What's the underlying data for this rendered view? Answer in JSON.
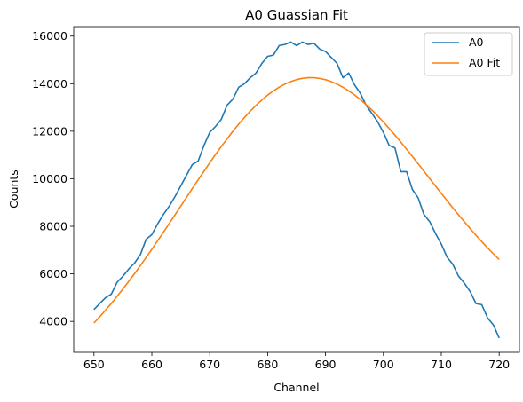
{
  "chart_data": {
    "type": "line",
    "title": "A0 Guassian Fit",
    "xlabel": "Channel",
    "ylabel": "Counts",
    "xlim": [
      646.5,
      723.5
    ],
    "ylim": [
      2700,
      16400
    ],
    "x_ticks": [
      650,
      660,
      670,
      680,
      690,
      700,
      710,
      720
    ],
    "y_ticks": [
      4000,
      6000,
      8000,
      10000,
      12000,
      14000,
      16000
    ],
    "grid": false,
    "legend_position": "top-right",
    "series": [
      {
        "name": "A0",
        "color": "#1f77b4",
        "x": [
          650,
          651,
          652,
          653,
          654,
          655,
          656,
          657,
          658,
          659,
          660,
          661,
          662,
          663,
          664,
          665,
          666,
          667,
          668,
          669,
          670,
          671,
          672,
          673,
          674,
          675,
          676,
          677,
          678,
          679,
          680,
          681,
          682,
          683,
          684,
          685,
          686,
          687,
          688,
          689,
          690,
          691,
          692,
          693,
          694,
          695,
          696,
          697,
          698,
          699,
          700,
          701,
          702,
          703,
          704,
          705,
          706,
          707,
          708,
          709,
          710,
          711,
          712,
          713,
          714,
          715,
          716,
          717,
          718,
          719,
          720
        ],
        "y": [
          4500,
          4750,
          5000,
          5150,
          5650,
          5900,
          6200,
          6450,
          6800,
          7450,
          7650,
          8100,
          8500,
          8850,
          9250,
          9700,
          10150,
          10600,
          10750,
          11400,
          11950,
          12200,
          12500,
          13100,
          13350,
          13850,
          14000,
          14250,
          14450,
          14850,
          15150,
          15200,
          15600,
          15650,
          15750,
          15600,
          15750,
          15650,
          15700,
          15450,
          15350,
          15100,
          14850,
          14250,
          14450,
          13950,
          13600,
          13100,
          12750,
          12400,
          11950,
          11400,
          11300,
          10300,
          10300,
          9550,
          9200,
          8500,
          8200,
          7700,
          7250,
          6700,
          6400,
          5900,
          5600,
          5250,
          4750,
          4700,
          4150,
          3850,
          3300
        ]
      },
      {
        "name": "A0 Fit",
        "color": "#ff7f0e",
        "x": [
          650,
          651,
          652,
          653,
          654,
          655,
          656,
          657,
          658,
          659,
          660,
          661,
          662,
          663,
          664,
          665,
          666,
          667,
          668,
          669,
          670,
          671,
          672,
          673,
          674,
          675,
          676,
          677,
          678,
          679,
          680,
          681,
          682,
          683,
          684,
          685,
          686,
          687,
          688,
          689,
          690,
          691,
          692,
          693,
          694,
          695,
          696,
          697,
          698,
          699,
          700,
          701,
          702,
          703,
          704,
          705,
          706,
          707,
          708,
          709,
          710,
          711,
          712,
          713,
          714,
          715,
          716,
          717,
          718,
          719,
          720
        ],
        "y": [
          3933,
          4198,
          4473,
          4760,
          5057,
          5364,
          5681,
          6007,
          6342,
          6685,
          7035,
          7391,
          7751,
          8116,
          8484,
          8853,
          9223,
          9591,
          9956,
          10317,
          10672,
          11019,
          11357,
          11683,
          11997,
          12296,
          12578,
          12843,
          13089,
          13314,
          13518,
          13698,
          13854,
          13985,
          14091,
          14170,
          14223,
          14249,
          14248,
          14220,
          14166,
          14086,
          13981,
          13852,
          13701,
          13528,
          13334,
          13122,
          12892,
          12647,
          12388,
          12116,
          11834,
          11543,
          11244,
          10939,
          10631,
          10320,
          10008,
          9696,
          9386,
          9079,
          8776,
          8478,
          8186,
          7901,
          7624,
          7355,
          7095,
          6845,
          6605
        ]
      }
    ]
  }
}
